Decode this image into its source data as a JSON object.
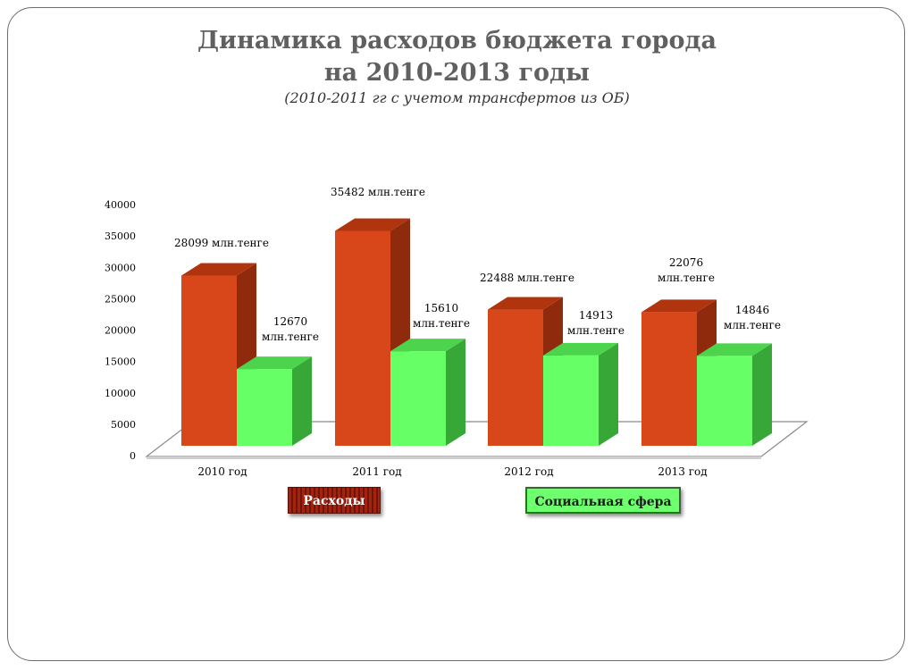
{
  "title_line1": "Динамика расходов бюджета города",
  "title_line2": "на 2010-2013 годы",
  "subtitle": "(2010-2011 гг с учетом трансфертов из ОБ)",
  "chart_data": {
    "type": "bar",
    "title": "Динамика расходов бюджета города на 2010-2013 годы",
    "subtitle": "(2010-2011 гг с учетом трансфертов из ОБ)",
    "categories": [
      "2010 год",
      "2011 год",
      "2012 год",
      "2013 год"
    ],
    "ylim": [
      0,
      40000
    ],
    "yticks": [
      0,
      5000,
      10000,
      15000,
      20000,
      25000,
      30000,
      35000,
      40000
    ],
    "grid": false,
    "legend_placement": "bottom",
    "series": [
      {
        "name": "Расходы",
        "color": "#d8471a",
        "values": [
          28099,
          35482,
          22488,
          22076
        ],
        "labels": [
          [
            "28099  млн.тенге"
          ],
          [
            "35482 млн.тенге"
          ],
          [
            "22488 млн.тенге"
          ],
          [
            "22076",
            "млн.тенге"
          ]
        ]
      },
      {
        "name": "Социальная сфера",
        "color": "#66ff66",
        "values": [
          12670,
          15610,
          14913,
          14846
        ],
        "labels": [
          [
            "12670",
            "млн.тенге"
          ],
          [
            "15610",
            "млн.тенге"
          ],
          [
            "14913",
            "млн.тенге"
          ],
          [
            "14846",
            "млн.тенге"
          ]
        ]
      }
    ]
  }
}
